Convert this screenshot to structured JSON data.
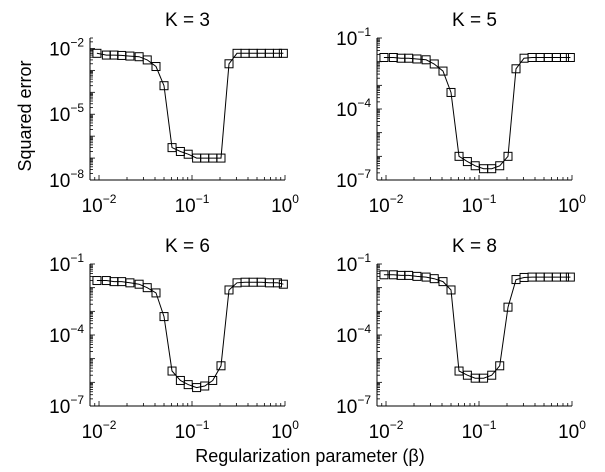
{
  "figure": {
    "ylabel": "Squared error",
    "xlabel": "Regularization parameter (β)"
  },
  "chart_data": [
    {
      "type": "line",
      "title": "K = 3",
      "xscale": "log",
      "yscale": "log",
      "xlim": [
        0.008,
        1
      ],
      "ylim": [
        1e-08,
        0.03
      ],
      "xticks": [
        {
          "base": "10",
          "exp": "−2",
          "v": 0.01
        },
        {
          "base": "10",
          "exp": "−1",
          "v": 0.1
        },
        {
          "base": "10",
          "exp": "0",
          "v": 1
        }
      ],
      "yticks": [
        {
          "base": "10",
          "exp": "−8",
          "v": 1e-08
        },
        {
          "base": "10",
          "exp": "−5",
          "v": 1e-05
        },
        {
          "base": "10",
          "exp": "−2",
          "v": 0.01
        }
      ],
      "series": [
        {
          "style": "line with square markers",
          "x": [
            0.0095,
            0.012,
            0.0145,
            0.0175,
            0.0215,
            0.027,
            0.033,
            0.041,
            0.05,
            0.061,
            0.075,
            0.091,
            0.112,
            0.137,
            0.167,
            0.205,
            0.25,
            0.305,
            0.372,
            0.455,
            0.555,
            0.68,
            0.83,
            0.96
          ],
          "y": [
            0.006,
            0.005,
            0.005,
            0.0048,
            0.0045,
            0.0042,
            0.003,
            0.0015,
            0.0002,
            3e-07,
            2e-07,
            1.5e-07,
            1e-07,
            1e-07,
            1e-07,
            1e-07,
            0.002,
            0.006,
            0.006,
            0.006,
            0.006,
            0.006,
            0.006,
            0.006
          ]
        }
      ]
    },
    {
      "type": "line",
      "title": "K = 5",
      "xscale": "log",
      "yscale": "log",
      "xlim": [
        0.008,
        1
      ],
      "ylim": [
        1e-07,
        0.1
      ],
      "xticks": [
        {
          "base": "10",
          "exp": "−2",
          "v": 0.01
        },
        {
          "base": "10",
          "exp": "−1",
          "v": 0.1
        },
        {
          "base": "10",
          "exp": "0",
          "v": 1
        }
      ],
      "yticks": [
        {
          "base": "10",
          "exp": "−7",
          "v": 1e-07
        },
        {
          "base": "10",
          "exp": "−4",
          "v": 0.0001
        },
        {
          "base": "10",
          "exp": "−1",
          "v": 0.1
        }
      ],
      "series": [
        {
          "style": "line with square markers",
          "x": [
            0.0095,
            0.012,
            0.0145,
            0.0175,
            0.0215,
            0.027,
            0.033,
            0.041,
            0.05,
            0.061,
            0.075,
            0.091,
            0.112,
            0.137,
            0.167,
            0.205,
            0.25,
            0.305,
            0.372,
            0.455,
            0.555,
            0.68,
            0.83,
            0.96
          ],
          "y": [
            0.015,
            0.015,
            0.014,
            0.014,
            0.013,
            0.012,
            0.008,
            0.004,
            0.0005,
            1e-06,
            6e-07,
            4e-07,
            3e-07,
            3e-07,
            4e-07,
            1e-06,
            0.005,
            0.014,
            0.015,
            0.015,
            0.015,
            0.015,
            0.015,
            0.015
          ]
        }
      ]
    },
    {
      "type": "line",
      "title": "K = 6",
      "xscale": "log",
      "yscale": "log",
      "xlim": [
        0.008,
        1
      ],
      "ylim": [
        1e-07,
        0.1
      ],
      "xticks": [
        {
          "base": "10",
          "exp": "−2",
          "v": 0.01
        },
        {
          "base": "10",
          "exp": "−1",
          "v": 0.1
        },
        {
          "base": "10",
          "exp": "0",
          "v": 1
        }
      ],
      "yticks": [
        {
          "base": "10",
          "exp": "−7",
          "v": 1e-07
        },
        {
          "base": "10",
          "exp": "−4",
          "v": 0.0001
        },
        {
          "base": "10",
          "exp": "−1",
          "v": 0.1
        }
      ],
      "series": [
        {
          "style": "line with square markers",
          "x": [
            0.0095,
            0.012,
            0.0145,
            0.0175,
            0.0215,
            0.027,
            0.033,
            0.041,
            0.05,
            0.061,
            0.075,
            0.091,
            0.112,
            0.137,
            0.167,
            0.205,
            0.25,
            0.305,
            0.372,
            0.455,
            0.555,
            0.68,
            0.83,
            0.96
          ],
          "y": [
            0.02,
            0.02,
            0.018,
            0.018,
            0.016,
            0.014,
            0.01,
            0.006,
            0.0006,
            3e-06,
            1.2e-06,
            8e-07,
            6e-07,
            7e-07,
            1.2e-06,
            5e-06,
            0.008,
            0.016,
            0.017,
            0.017,
            0.017,
            0.016,
            0.016,
            0.014
          ]
        }
      ]
    },
    {
      "type": "line",
      "title": "K = 8",
      "xscale": "log",
      "yscale": "log",
      "xlim": [
        0.008,
        1
      ],
      "ylim": [
        1e-07,
        0.1
      ],
      "xticks": [
        {
          "base": "10",
          "exp": "−2",
          "v": 0.01
        },
        {
          "base": "10",
          "exp": "−1",
          "v": 0.1
        },
        {
          "base": "10",
          "exp": "0",
          "v": 1
        }
      ],
      "yticks": [
        {
          "base": "10",
          "exp": "−7",
          "v": 1e-07
        },
        {
          "base": "10",
          "exp": "−4",
          "v": 0.0001
        },
        {
          "base": "10",
          "exp": "−1",
          "v": 0.1
        }
      ],
      "series": [
        {
          "style": "line with square markers",
          "x": [
            0.0095,
            0.012,
            0.0145,
            0.0175,
            0.0215,
            0.027,
            0.033,
            0.041,
            0.05,
            0.061,
            0.075,
            0.091,
            0.112,
            0.137,
            0.167,
            0.205,
            0.25,
            0.305,
            0.372,
            0.455,
            0.555,
            0.68,
            0.83,
            0.96
          ],
          "y": [
            0.035,
            0.035,
            0.033,
            0.033,
            0.03,
            0.028,
            0.024,
            0.018,
            0.008,
            3e-06,
            2e-06,
            1.5e-06,
            1.5e-06,
            2e-06,
            5e-06,
            0.0015,
            0.022,
            0.027,
            0.028,
            0.028,
            0.028,
            0.028,
            0.028,
            0.028
          ]
        }
      ]
    }
  ]
}
